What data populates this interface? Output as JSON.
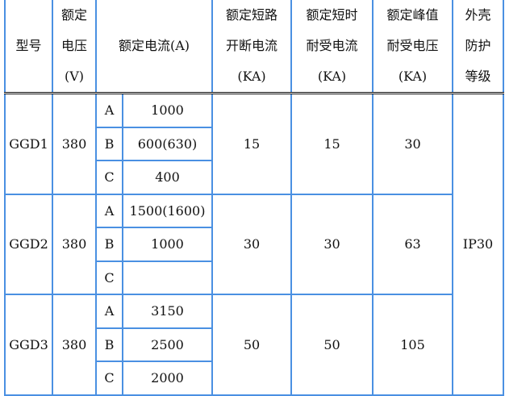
{
  "header": {
    "model": "型号",
    "voltage": [
      "额定",
      "电压",
      "(V)"
    ],
    "current": "额定电流(A)",
    "break": [
      "额定短路",
      "开断电流",
      "(KA)"
    ],
    "short": [
      "额定短时",
      "耐受电流",
      "(KA)"
    ],
    "peak": [
      "额定峰值",
      "耐受电压",
      "(KA)"
    ],
    "ip": [
      "外壳",
      "防护",
      "等级"
    ]
  },
  "rows": [
    {
      "model": "GGD1",
      "voltage": "380",
      "currents": [
        {
          "grade": "A",
          "value": "1000"
        },
        {
          "grade": "B",
          "value": "600(630)"
        },
        {
          "grade": "C",
          "value": "400"
        }
      ],
      "break": "15",
      "short": "15",
      "peak": "30"
    },
    {
      "model": "GGD2",
      "voltage": "380",
      "currents": [
        {
          "grade": "A",
          "value": "1500(1600)"
        },
        {
          "grade": "B",
          "value": "1000"
        },
        {
          "grade": "C",
          "value": ""
        }
      ],
      "break": "30",
      "short": "30",
      "peak": "63"
    },
    {
      "model": "GGD3",
      "voltage": "380",
      "currents": [
        {
          "grade": "A",
          "value": "3150"
        },
        {
          "grade": "B",
          "value": "2500"
        },
        {
          "grade": "C",
          "value": "2000"
        }
      ],
      "break": "50",
      "short": "50",
      "peak": "105"
    }
  ],
  "ip_value": "IP30"
}
